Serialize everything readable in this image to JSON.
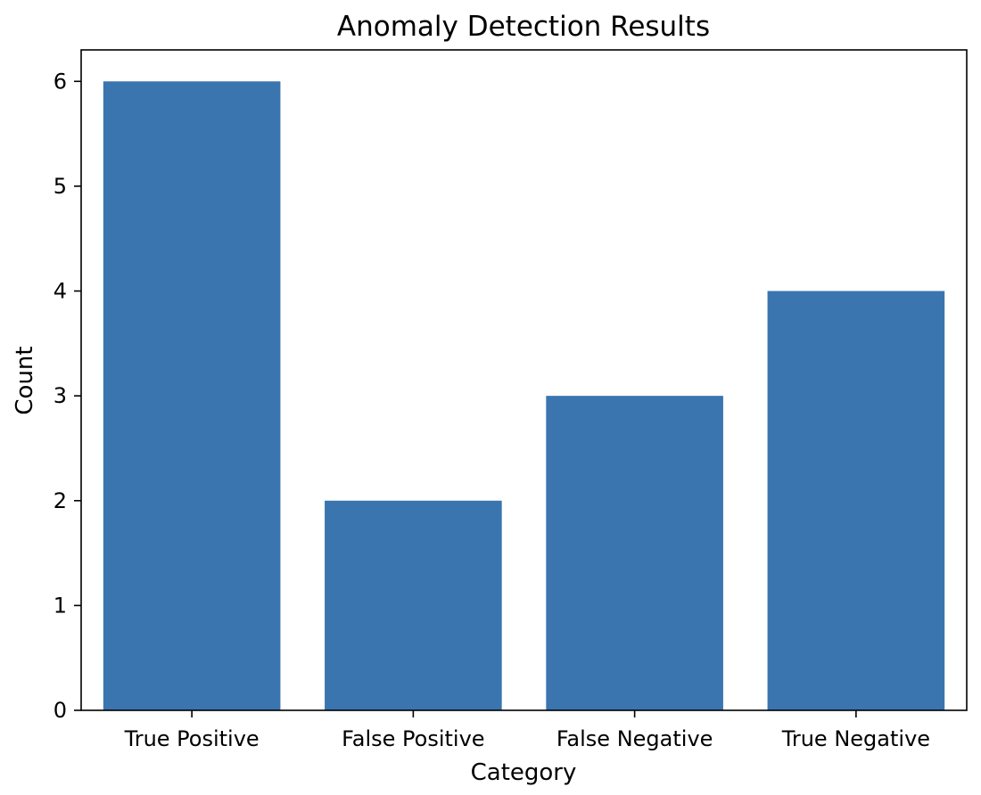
{
  "chart_data": {
    "type": "bar",
    "title": "Anomaly Detection Results",
    "xlabel": "Category",
    "ylabel": "Count",
    "categories": [
      "True Positive",
      "False Positive",
      "False Negative",
      "True Negative"
    ],
    "values": [
      6,
      2,
      3,
      4
    ],
    "ylim": [
      0,
      6.3
    ],
    "yticks": [
      "0",
      "1",
      "2",
      "3",
      "4",
      "5",
      "6"
    ],
    "bar_color": "#3a75af",
    "grid": false,
    "legend": "none"
  }
}
